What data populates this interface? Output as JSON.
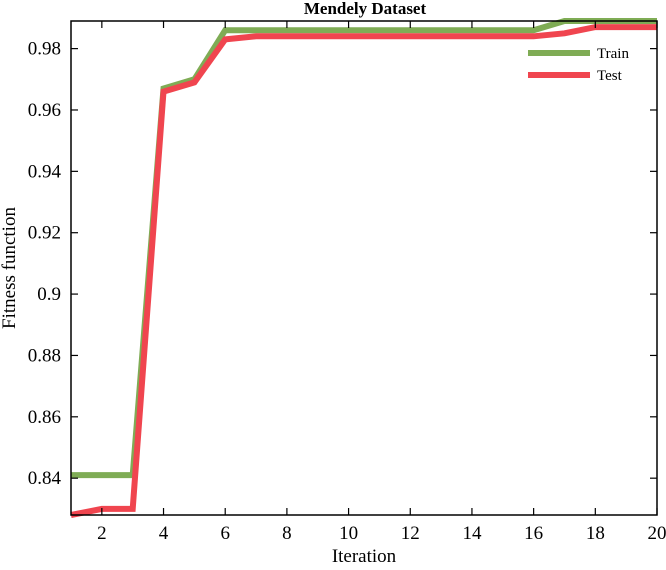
{
  "chart_data": {
    "type": "line",
    "title": "Mendely Dataset",
    "xlabel": "Iteration",
    "ylabel": "Fitness function",
    "xlim": [
      1,
      20
    ],
    "ylim": [
      0.828,
      0.989
    ],
    "xticks": [
      2,
      4,
      6,
      8,
      10,
      12,
      14,
      16,
      18,
      20
    ],
    "yticks": [
      0.84,
      0.86,
      0.88,
      0.9,
      0.92,
      0.94,
      0.96,
      0.98
    ],
    "ytick_labels": [
      "0.84",
      "0.86",
      "0.88",
      "0.9",
      "0.92",
      "0.94",
      "0.96",
      "0.98"
    ],
    "grid": false,
    "legend_position": "top-right",
    "x": [
      1,
      2,
      3,
      4,
      5,
      6,
      7,
      8,
      9,
      10,
      11,
      12,
      13,
      14,
      15,
      16,
      17,
      18,
      19,
      20
    ],
    "series": [
      {
        "name": "Train",
        "color": "#7fac55",
        "values": [
          0.841,
          0.841,
          0.841,
          0.967,
          0.97,
          0.986,
          0.986,
          0.986,
          0.986,
          0.986,
          0.986,
          0.986,
          0.986,
          0.986,
          0.986,
          0.986,
          0.989,
          0.989,
          0.989,
          0.989
        ]
      },
      {
        "name": "Test",
        "color": "#f0454f",
        "values": [
          0.828,
          0.83,
          0.83,
          0.966,
          0.969,
          0.983,
          0.984,
          0.984,
          0.984,
          0.984,
          0.984,
          0.984,
          0.984,
          0.984,
          0.984,
          0.984,
          0.985,
          0.987,
          0.987,
          0.987
        ]
      }
    ]
  }
}
